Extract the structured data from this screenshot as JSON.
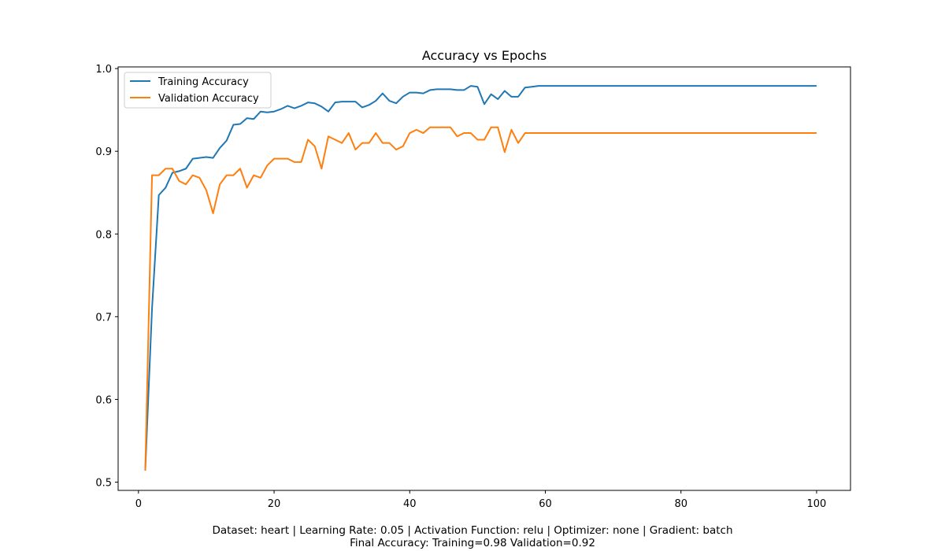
{
  "chart_data": {
    "type": "line",
    "title": "Accuracy vs Epochs",
    "xlabel": "",
    "ylabel": "",
    "xlim": [
      -3,
      105
    ],
    "ylim": [
      0.49,
      1.002
    ],
    "xticks": [
      0,
      20,
      40,
      60,
      80,
      100
    ],
    "yticks": [
      0.5,
      0.6,
      0.7,
      0.8,
      0.9,
      1.0
    ],
    "xtick_labels": [
      "0",
      "20",
      "40",
      "60",
      "80",
      "100"
    ],
    "ytick_labels": [
      "0.5",
      "0.6",
      "0.7",
      "0.8",
      "0.9",
      "1.0"
    ],
    "grid": false,
    "legend_position": "top-left",
    "x": [
      1,
      2,
      3,
      4,
      5,
      6,
      7,
      8,
      9,
      10,
      11,
      12,
      13,
      14,
      15,
      16,
      17,
      18,
      19,
      20,
      21,
      22,
      23,
      24,
      25,
      26,
      27,
      28,
      29,
      30,
      31,
      32,
      33,
      34,
      35,
      36,
      37,
      38,
      39,
      40,
      41,
      42,
      43,
      44,
      45,
      46,
      47,
      48,
      49,
      50,
      51,
      52,
      53,
      54,
      55,
      56,
      57,
      58,
      59,
      60,
      61,
      62,
      63,
      64,
      65,
      66,
      67,
      68,
      69,
      70,
      71,
      72,
      73,
      74,
      75,
      76,
      77,
      78,
      79,
      80,
      81,
      82,
      83,
      84,
      85,
      86,
      87,
      88,
      89,
      90,
      91,
      92,
      93,
      94,
      95,
      96,
      97,
      98,
      99,
      100
    ],
    "series": [
      {
        "name": "Training Accuracy",
        "color": "#1f77b4",
        "values": [
          0.514,
          0.71,
          0.847,
          0.856,
          0.874,
          0.876,
          0.879,
          0.891,
          0.892,
          0.893,
          0.892,
          0.904,
          0.913,
          0.932,
          0.933,
          0.94,
          0.939,
          0.948,
          0.947,
          0.948,
          0.951,
          0.955,
          0.952,
          0.955,
          0.959,
          0.958,
          0.954,
          0.948,
          0.959,
          0.96,
          0.96,
          0.96,
          0.953,
          0.956,
          0.961,
          0.97,
          0.961,
          0.958,
          0.966,
          0.971,
          0.971,
          0.97,
          0.974,
          0.975,
          0.975,
          0.975,
          0.974,
          0.974,
          0.979,
          0.978,
          0.957,
          0.969,
          0.963,
          0.973,
          0.966,
          0.966,
          0.977,
          0.978,
          0.979,
          0.979,
          0.979,
          0.979,
          0.979,
          0.979,
          0.979,
          0.979,
          0.979,
          0.979,
          0.979,
          0.979,
          0.979,
          0.979,
          0.979,
          0.979,
          0.979,
          0.979,
          0.979,
          0.979,
          0.979,
          0.979,
          0.979,
          0.979,
          0.979,
          0.979,
          0.979,
          0.979,
          0.979,
          0.979,
          0.979,
          0.979,
          0.979,
          0.979,
          0.979,
          0.979,
          0.979,
          0.979,
          0.979,
          0.979,
          0.979,
          0.979
        ]
      },
      {
        "name": "Validation Accuracy",
        "color": "#ff7f0e",
        "values": [
          0.514,
          0.871,
          0.871,
          0.879,
          0.879,
          0.864,
          0.86,
          0.871,
          0.868,
          0.853,
          0.825,
          0.86,
          0.871,
          0.871,
          0.879,
          0.856,
          0.871,
          0.868,
          0.883,
          0.891,
          0.891,
          0.891,
          0.887,
          0.887,
          0.914,
          0.906,
          0.879,
          0.918,
          0.914,
          0.91,
          0.922,
          0.902,
          0.91,
          0.91,
          0.922,
          0.91,
          0.91,
          0.902,
          0.906,
          0.922,
          0.926,
          0.922,
          0.929,
          0.929,
          0.929,
          0.929,
          0.918,
          0.922,
          0.922,
          0.914,
          0.914,
          0.929,
          0.929,
          0.899,
          0.926,
          0.91,
          0.922,
          0.922,
          0.922,
          0.922,
          0.922,
          0.922,
          0.922,
          0.922,
          0.922,
          0.922,
          0.922,
          0.922,
          0.922,
          0.922,
          0.922,
          0.922,
          0.922,
          0.922,
          0.922,
          0.922,
          0.922,
          0.922,
          0.922,
          0.922,
          0.922,
          0.922,
          0.922,
          0.922,
          0.922,
          0.922,
          0.922,
          0.922,
          0.922,
          0.922,
          0.922,
          0.922,
          0.922,
          0.922,
          0.922,
          0.922,
          0.922,
          0.922,
          0.922,
          0.922
        ]
      }
    ]
  },
  "caption": {
    "line1": "Dataset: heart | Learning Rate: 0.05 | Activation Function: relu | Optimizer: none | Gradient: batch",
    "line2": "Final Accuracy: Training=0.98 Validation=0.92"
  }
}
